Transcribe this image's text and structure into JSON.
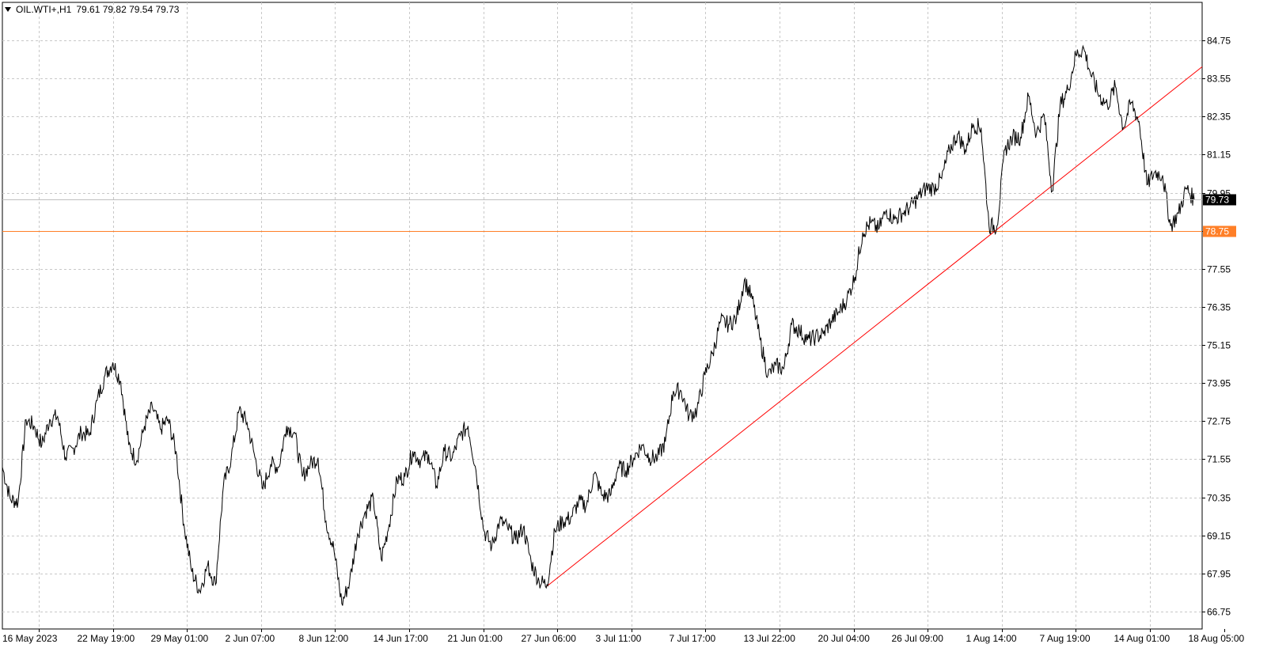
{
  "header": {
    "symbol_timeframe": "OIL.WTI+,H1",
    "ohlc": "79.61 79.82 79.54 79.73"
  },
  "chart_data": {
    "type": "line",
    "symbol": "OIL.WTI+",
    "timeframe": "H1",
    "ohlc_last": {
      "open": 79.61,
      "high": 79.82,
      "low": 79.54,
      "close": 79.73
    },
    "ylim": [
      66.2,
      85.95
    ],
    "y_ticks": [
      "84.75",
      "83.55",
      "82.35",
      "81.15",
      "79.95",
      "78.75",
      "77.55",
      "76.35",
      "75.15",
      "73.95",
      "72.75",
      "71.55",
      "70.35",
      "69.15",
      "67.95",
      "66.75"
    ],
    "x_ticks": [
      "16 May 2023",
      "22 May 19:00",
      "29 May 01:00",
      "2 Jun 07:00",
      "8 Jun 12:00",
      "14 Jun 17:00",
      "21 Jun 01:00",
      "27 Jun 06:00",
      "3 Jul 11:00",
      "7 Jul 17:00",
      "13 Jul 22:00",
      "20 Jul 04:00",
      "26 Jul 09:00",
      "1 Aug 14:00",
      "7 Aug 19:00",
      "14 Aug 01:00",
      "18 Aug 05:00"
    ],
    "grid": true,
    "series": [
      {
        "values": [
          [
            0,
            71.3
          ],
          [
            10,
            70.3
          ],
          [
            20,
            70.2
          ],
          [
            30,
            72.8
          ],
          [
            40,
            72.6
          ],
          [
            50,
            72.0
          ],
          [
            60,
            72.8
          ],
          [
            70,
            72.9
          ],
          [
            80,
            71.6
          ],
          [
            90,
            71.9
          ],
          [
            100,
            72.4
          ],
          [
            110,
            72.3
          ],
          [
            120,
            73.4
          ],
          [
            130,
            74.2
          ],
          [
            140,
            74.6
          ],
          [
            150,
            74.0
          ],
          [
            160,
            72.0
          ],
          [
            170,
            71.5
          ],
          [
            180,
            72.6
          ],
          [
            190,
            73.2
          ],
          [
            200,
            72.5
          ],
          [
            210,
            72.8
          ],
          [
            220,
            71.8
          ],
          [
            230,
            69.5
          ],
          [
            240,
            68.0
          ],
          [
            250,
            67.4
          ],
          [
            260,
            68.2
          ],
          [
            270,
            67.6
          ],
          [
            280,
            70.7
          ],
          [
            290,
            71.6
          ],
          [
            300,
            73.1
          ],
          [
            310,
            72.7
          ],
          [
            320,
            71.6
          ],
          [
            330,
            70.6
          ],
          [
            340,
            71.4
          ],
          [
            350,
            71.3
          ],
          [
            360,
            72.6
          ],
          [
            370,
            72.4
          ],
          [
            380,
            71.0
          ],
          [
            390,
            71.4
          ],
          [
            400,
            71.6
          ],
          [
            410,
            69.6
          ],
          [
            420,
            68.7
          ],
          [
            430,
            67.0
          ],
          [
            440,
            67.7
          ],
          [
            450,
            69.2
          ],
          [
            460,
            69.9
          ],
          [
            470,
            70.3
          ],
          [
            480,
            68.4
          ],
          [
            490,
            69.5
          ],
          [
            500,
            70.9
          ],
          [
            510,
            71.0
          ],
          [
            520,
            71.8
          ],
          [
            530,
            71.5
          ],
          [
            540,
            71.7
          ],
          [
            550,
            70.7
          ],
          [
            560,
            71.8
          ],
          [
            570,
            71.6
          ],
          [
            580,
            72.3
          ],
          [
            590,
            72.6
          ],
          [
            600,
            71.2
          ],
          [
            610,
            69.3
          ],
          [
            620,
            68.8
          ],
          [
            630,
            69.6
          ],
          [
            640,
            69.4
          ],
          [
            650,
            69.0
          ],
          [
            660,
            69.4
          ],
          [
            670,
            68.3
          ],
          [
            680,
            67.7
          ],
          [
            690,
            67.6
          ],
          [
            700,
            69.3
          ],
          [
            710,
            69.6
          ],
          [
            720,
            69.7
          ],
          [
            730,
            70.2
          ],
          [
            740,
            70.1
          ],
          [
            750,
            71.1
          ],
          [
            760,
            70.4
          ],
          [
            770,
            70.4
          ],
          [
            780,
            71.3
          ],
          [
            790,
            71.2
          ],
          [
            800,
            71.6
          ],
          [
            810,
            72.0
          ],
          [
            820,
            71.6
          ],
          [
            830,
            71.6
          ],
          [
            840,
            72.1
          ],
          [
            850,
            73.7
          ],
          [
            860,
            73.7
          ],
          [
            870,
            72.9
          ],
          [
            880,
            73.1
          ],
          [
            890,
            74.2
          ],
          [
            900,
            74.9
          ],
          [
            910,
            75.9
          ],
          [
            920,
            75.8
          ],
          [
            930,
            76.0
          ],
          [
            940,
            77.2
          ],
          [
            950,
            76.6
          ],
          [
            960,
            75.3
          ],
          [
            970,
            74.2
          ],
          [
            980,
            74.5
          ],
          [
            990,
            74.4
          ],
          [
            1000,
            75.8
          ],
          [
            1010,
            75.6
          ],
          [
            1020,
            75.3
          ],
          [
            1030,
            75.4
          ],
          [
            1040,
            75.5
          ],
          [
            1050,
            75.9
          ],
          [
            1060,
            76.2
          ],
          [
            1070,
            76.6
          ],
          [
            1080,
            77.3
          ],
          [
            1090,
            78.7
          ],
          [
            1100,
            79.0
          ],
          [
            1110,
            78.8
          ],
          [
            1120,
            79.4
          ],
          [
            1130,
            79.1
          ],
          [
            1140,
            79.3
          ],
          [
            1150,
            79.5
          ],
          [
            1160,
            79.8
          ],
          [
            1170,
            80.1
          ],
          [
            1180,
            80.1
          ],
          [
            1190,
            80.4
          ],
          [
            1200,
            81.3
          ],
          [
            1210,
            81.8
          ],
          [
            1220,
            81.3
          ],
          [
            1230,
            82.1
          ],
          [
            1240,
            82.0
          ],
          [
            1250,
            78.9
          ],
          [
            1260,
            78.9
          ],
          [
            1270,
            81.3
          ],
          [
            1280,
            81.7
          ],
          [
            1290,
            81.7
          ],
          [
            1300,
            83.0
          ],
          [
            1310,
            81.8
          ],
          [
            1320,
            82.4
          ],
          [
            1330,
            80.0
          ],
          [
            1340,
            82.7
          ],
          [
            1350,
            83.2
          ],
          [
            1360,
            84.3
          ],
          [
            1370,
            84.5
          ],
          [
            1380,
            83.6
          ],
          [
            1390,
            83.0
          ],
          [
            1400,
            82.7
          ],
          [
            1410,
            83.3
          ],
          [
            1420,
            82.0
          ],
          [
            1430,
            82.8
          ],
          [
            1440,
            82.2
          ],
          [
            1450,
            80.2
          ],
          [
            1460,
            80.6
          ],
          [
            1470,
            80.5
          ],
          [
            1480,
            78.9
          ],
          [
            1490,
            79.3
          ],
          [
            1500,
            80.1
          ],
          [
            1510,
            79.73
          ]
        ]
      }
    ],
    "horizontal_level": {
      "value": 78.75,
      "label": "78.75",
      "color": "#ff7f27"
    },
    "current_price": {
      "value": 79.73,
      "label": "79.73"
    },
    "trendline": {
      "from": [
        690,
        67.55
      ],
      "to": [
        1520,
        83.92
      ],
      "color": "#ff0000"
    },
    "colors": {
      "price_line": "#000000",
      "grid": "#c8c8c8",
      "axis": "#000000",
      "level": "#ff7f27",
      "trend": "#ff0000",
      "current_label_bg": "#000000",
      "current_label_fg": "#ffffff",
      "level_label_fg": "#ffffff"
    }
  }
}
